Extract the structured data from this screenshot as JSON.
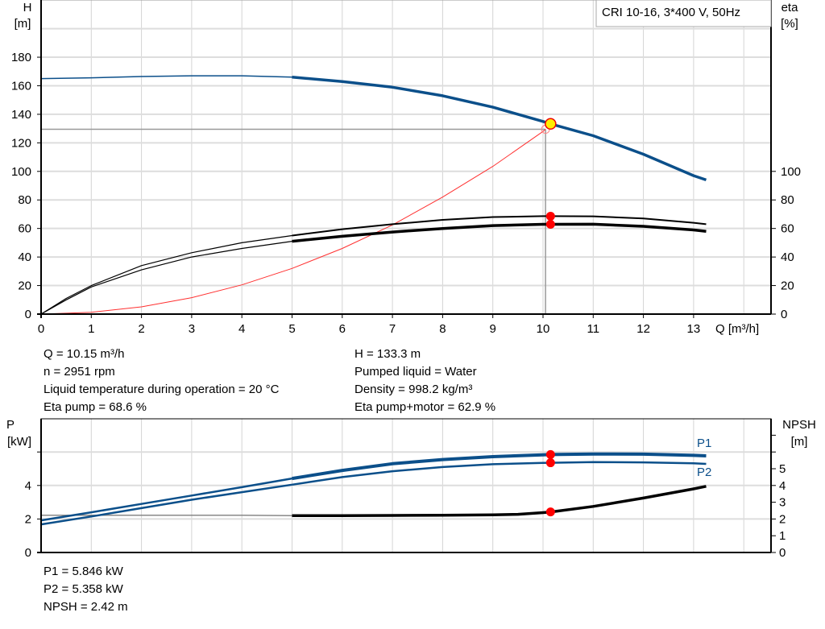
{
  "legend_box": "CRI 10-16, 3*400 V, 50Hz",
  "chart_data": [
    {
      "type": "line",
      "title": "",
      "legend_box": "CRI 10-16, 3*400 V, 50Hz",
      "xlabel": "Q [m³/h]",
      "ylabel_left": [
        "H",
        "[m]"
      ],
      "ylabel_right": [
        "eta",
        "[%]"
      ],
      "xlim": [
        0,
        14.55
      ],
      "ylim": [
        0,
        200
      ],
      "x_ticks": [
        0,
        1,
        2,
        3,
        4,
        5,
        6,
        7,
        8,
        9,
        10,
        11,
        12,
        13
      ],
      "y_ticks_left": [
        0,
        20,
        40,
        60,
        80,
        100,
        120,
        140,
        160,
        180
      ],
      "y_ticks_right": [
        0,
        20,
        40,
        60,
        80,
        100
      ],
      "grid": true,
      "duty_range": [
        5,
        13.25
      ],
      "operating_point": {
        "Q": 10.15,
        "H": 133.3,
        "eta_pump": 68.6,
        "eta_total": 62.9
      },
      "system_point": {
        "Q": 10.05,
        "H": 129.5
      },
      "series": [
        {
          "key": "H",
          "color": "#0b4f8a",
          "x": [
            0,
            1,
            2,
            3,
            4,
            5,
            6,
            7,
            8,
            9,
            10,
            10.15,
            11,
            12,
            13,
            13.25
          ],
          "y": [
            165,
            165.6,
            166.5,
            167,
            167,
            166,
            163,
            159,
            153,
            145,
            135,
            133.3,
            125,
            112,
            97,
            94
          ]
        },
        {
          "key": "eta_pump",
          "color": "#000000",
          "x": [
            0,
            0.5,
            1,
            2,
            3,
            4,
            5,
            6,
            7,
            8,
            9,
            10,
            10.15,
            11,
            12,
            13,
            13.25
          ],
          "y": [
            0,
            11,
            20,
            34,
            43,
            50,
            55,
            59.5,
            63,
            66,
            68,
            68.6,
            68.6,
            68.5,
            67,
            64,
            63
          ]
        },
        {
          "key": "eta_pump_motor",
          "color": "#000000",
          "x": [
            0,
            0.5,
            1,
            2,
            3,
            4,
            5,
            6,
            7,
            8,
            9,
            10,
            10.15,
            11,
            12,
            13,
            13.25
          ],
          "y": [
            0,
            10,
            19,
            31,
            40,
            46,
            51,
            54.5,
            57.5,
            60,
            62,
            62.9,
            62.9,
            63,
            61.5,
            59,
            58
          ]
        },
        {
          "key": "system_curve",
          "color": "#ff3030",
          "x": [
            0,
            1,
            2,
            3,
            4,
            5,
            6,
            7,
            8,
            9,
            10,
            10.05
          ],
          "y": [
            0,
            1.3,
            5.1,
            11.5,
            20.5,
            32,
            46,
            62.5,
            82,
            103.5,
            128,
            129.5
          ]
        }
      ]
    },
    {
      "type": "line",
      "title": "",
      "ylabel_left": [
        "P",
        "[kW]"
      ],
      "ylabel_right": [
        "NPSH",
        "[m]"
      ],
      "xlim": [
        0,
        14.55
      ],
      "ylim_left": [
        0,
        8
      ],
      "ylim_right": [
        0,
        8
      ],
      "y_ticks_left": [
        0,
        2,
        4,
        6
      ],
      "y_tick_labels_left": [
        "0",
        "2",
        "4",
        ""
      ],
      "y_ticks_right": [
        0,
        1,
        2,
        3,
        4,
        5,
        6,
        7
      ],
      "y_tick_labels_right": [
        "0",
        "1",
        "2",
        "3",
        "4",
        "5",
        "",
        ""
      ],
      "grid": true,
      "duty_range": [
        5,
        13.25
      ],
      "operating_point": {
        "Q": 10.15,
        "P1": 5.846,
        "P2": 5.358,
        "NPSH": 2.42
      },
      "series": [
        {
          "key": "P1",
          "name": "P1",
          "color": "#0b4f8a",
          "axis": "left",
          "x": [
            0,
            1,
            2,
            3,
            4,
            5,
            6,
            7,
            8,
            9,
            10,
            10.15,
            11,
            12,
            13,
            13.25
          ],
          "y": [
            1.92,
            2.4,
            2.9,
            3.4,
            3.9,
            4.42,
            4.9,
            5.3,
            5.55,
            5.72,
            5.83,
            5.846,
            5.88,
            5.87,
            5.8,
            5.77
          ]
        },
        {
          "key": "P2",
          "name": "P2",
          "color": "#0b4f8a",
          "axis": "left",
          "x": [
            0,
            1,
            2,
            3,
            4,
            5,
            6,
            7,
            8,
            9,
            10,
            10.15,
            11,
            12,
            13,
            13.25
          ],
          "y": [
            1.68,
            2.15,
            2.65,
            3.15,
            3.6,
            4.05,
            4.5,
            4.85,
            5.1,
            5.27,
            5.35,
            5.358,
            5.4,
            5.38,
            5.32,
            5.29
          ]
        },
        {
          "key": "NPSH",
          "color": "#000000",
          "axis": "right",
          "x": [
            0,
            1,
            2,
            3,
            4,
            5,
            6,
            7,
            8,
            9,
            9.5,
            10,
            10.15,
            11,
            12,
            13,
            13.25
          ],
          "y": [
            2.22,
            2.22,
            2.22,
            2.22,
            2.22,
            2.2,
            2.2,
            2.21,
            2.22,
            2.25,
            2.28,
            2.38,
            2.42,
            2.75,
            3.25,
            3.8,
            3.95
          ]
        }
      ]
    }
  ],
  "info_top": {
    "left": [
      "Q = 10.15 m³/h",
      "n = 2951 rpm",
      "Liquid temperature during operation = 20 °C",
      "Eta pump = 68.6 %"
    ],
    "right": [
      "H = 133.3 m",
      "Pumped liquid = Water",
      "Density = 998.2 kg/m³",
      "Eta pump+motor = 62.9 %"
    ]
  },
  "info_bottom": [
    "P1 = 5.846 kW",
    "P2 = 5.358 kW",
    "NPSH = 2.42 m"
  ]
}
